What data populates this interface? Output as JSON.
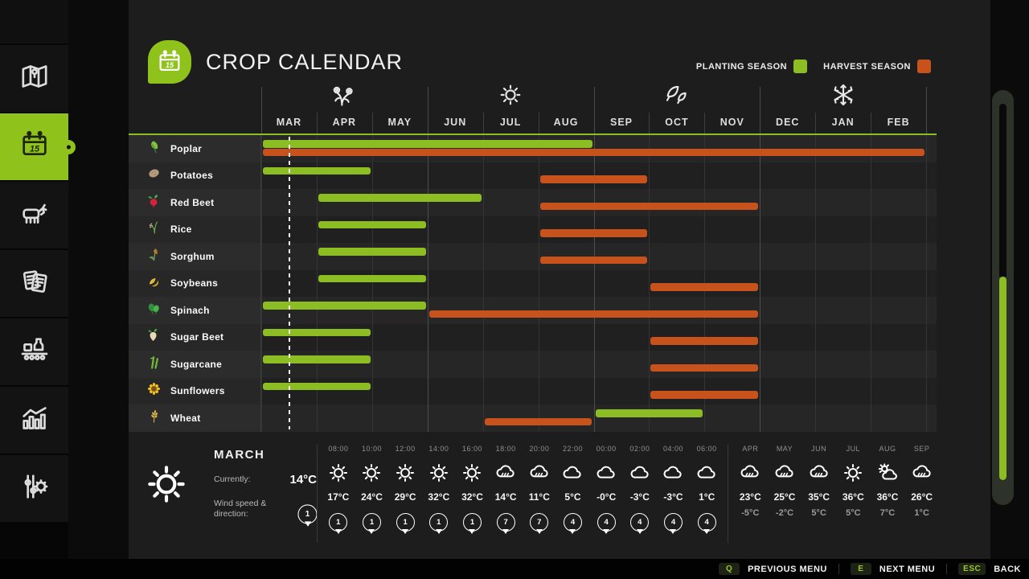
{
  "header": {
    "title": "CROP CALENDAR",
    "legend": [
      {
        "label": "PLANTING SEASON",
        "color": "#8cbd22"
      },
      {
        "label": "HARVEST SEASON",
        "color": "#c8521c"
      }
    ]
  },
  "sidebar": {
    "items": [
      {
        "icon": "map-icon",
        "active": false
      },
      {
        "icon": "calendar-icon",
        "active": true
      },
      {
        "icon": "animals-icon",
        "active": false
      },
      {
        "icon": "contracts-icon",
        "active": false
      },
      {
        "icon": "production-icon",
        "active": false
      },
      {
        "icon": "statistics-icon",
        "active": false
      },
      {
        "icon": "settings-icon",
        "active": false
      }
    ]
  },
  "chart_data": {
    "type": "gantt-calendar",
    "months": [
      "MAR",
      "APR",
      "MAY",
      "JUN",
      "JUL",
      "AUG",
      "SEP",
      "OCT",
      "NOV",
      "DEC",
      "JAN",
      "FEB"
    ],
    "seasons": [
      {
        "icon": "flower-icon",
        "month_index": 1
      },
      {
        "icon": "sun-icon",
        "month_index": 4
      },
      {
        "icon": "leaves-icon",
        "month_index": 7
      },
      {
        "icon": "snowflake-icon",
        "month_index": 10
      }
    ],
    "series_colors": {
      "planting": "#8cbd22",
      "harvest": "#c8521c"
    },
    "current_date_marker": {
      "month": "MAR",
      "month_index": 0,
      "fraction": 0.5
    },
    "crops": [
      {
        "name": "Poplar",
        "icon": "poplar-icon",
        "planting": {
          "start": 0,
          "end": 5,
          "months": "MAR-AUG"
        },
        "harvest": {
          "start": 0,
          "end": 11,
          "months": "MAR-FEB"
        }
      },
      {
        "name": "Potatoes",
        "icon": "potatoes-icon",
        "planting": {
          "start": 0,
          "end": 1,
          "months": "MAR-APR"
        },
        "harvest": {
          "start": 5,
          "end": 6,
          "months": "AUG-SEP"
        }
      },
      {
        "name": "Red Beet",
        "icon": "red-beet-icon",
        "planting": {
          "start": 1,
          "end": 3,
          "months": "APR-JUN"
        },
        "harvest": {
          "start": 5,
          "end": 8,
          "months": "AUG-NOV"
        }
      },
      {
        "name": "Rice",
        "icon": "rice-icon",
        "planting": {
          "start": 1,
          "end": 2,
          "months": "APR-MAY"
        },
        "harvest": {
          "start": 5,
          "end": 6,
          "months": "AUG-SEP"
        }
      },
      {
        "name": "Sorghum",
        "icon": "sorghum-icon",
        "planting": {
          "start": 1,
          "end": 2,
          "months": "APR-MAY"
        },
        "harvest": {
          "start": 5,
          "end": 6,
          "months": "AUG-SEP"
        }
      },
      {
        "name": "Soybeans",
        "icon": "soybeans-icon",
        "planting": {
          "start": 1,
          "end": 2,
          "months": "APR-MAY"
        },
        "harvest": {
          "start": 7,
          "end": 8,
          "months": "OCT-NOV"
        }
      },
      {
        "name": "Spinach",
        "icon": "spinach-icon",
        "planting": {
          "start": 0,
          "end": 2,
          "months": "MAR-MAY"
        },
        "harvest": {
          "start": 3,
          "end": 8,
          "months": "JUN-NOV"
        }
      },
      {
        "name": "Sugar Beet",
        "icon": "sugar-beet-icon",
        "planting": {
          "start": 0,
          "end": 1,
          "months": "MAR-APR"
        },
        "harvest": {
          "start": 7,
          "end": 8,
          "months": "OCT-NOV"
        }
      },
      {
        "name": "Sugarcane",
        "icon": "sugarcane-icon",
        "planting": {
          "start": 0,
          "end": 1,
          "months": "MAR-APR"
        },
        "harvest": {
          "start": 7,
          "end": 8,
          "months": "OCT-NOV"
        }
      },
      {
        "name": "Sunflowers",
        "icon": "sunflowers-icon",
        "planting": {
          "start": 0,
          "end": 1,
          "months": "MAR-APR"
        },
        "harvest": {
          "start": 7,
          "end": 8,
          "months": "OCT-NOV"
        }
      },
      {
        "name": "Wheat",
        "icon": "wheat-icon",
        "planting": {
          "start": 6,
          "end": 7,
          "months": "SEP-OCT"
        },
        "harvest": {
          "start": 4,
          "end": 5,
          "months": "JUL-AUG"
        }
      }
    ]
  },
  "weather": {
    "current": {
      "month": "MARCH",
      "condition": "sun",
      "currently_label": "Currently:",
      "temperature": "14°C",
      "wind_label": "Wind speed & direction:",
      "wind": "1"
    },
    "hourly": [
      {
        "time": "08:00",
        "condition": "sun",
        "temp": "17°C",
        "wind": "1"
      },
      {
        "time": "10:00",
        "condition": "sun",
        "temp": "24°C",
        "wind": "1"
      },
      {
        "time": "12:00",
        "condition": "sun",
        "temp": "29°C",
        "wind": "1"
      },
      {
        "time": "14:00",
        "condition": "sun",
        "temp": "32°C",
        "wind": "1"
      },
      {
        "time": "16:00",
        "condition": "sun",
        "temp": "32°C",
        "wind": "1"
      },
      {
        "time": "18:00",
        "condition": "rain",
        "temp": "14°C",
        "wind": "7"
      },
      {
        "time": "20:00",
        "condition": "rain",
        "temp": "11°C",
        "wind": "7"
      },
      {
        "time": "22:00",
        "condition": "cloud",
        "temp": "5°C",
        "wind": "4"
      },
      {
        "time": "00:00",
        "condition": "cloud",
        "temp": "-0°C",
        "wind": "4"
      },
      {
        "time": "02:00",
        "condition": "cloud",
        "temp": "-3°C",
        "wind": "4"
      },
      {
        "time": "04:00",
        "condition": "cloud",
        "temp": "-3°C",
        "wind": "4"
      },
      {
        "time": "06:00",
        "condition": "cloud",
        "temp": "1°C",
        "wind": "4"
      }
    ],
    "monthly": [
      {
        "month": "APR",
        "condition": "rain",
        "high": "23°C",
        "low": "-5°C"
      },
      {
        "month": "MAY",
        "condition": "rain",
        "high": "25°C",
        "low": "-2°C"
      },
      {
        "month": "JUN",
        "condition": "rain",
        "high": "35°C",
        "low": "5°C"
      },
      {
        "month": "JUL",
        "condition": "sun",
        "high": "36°C",
        "low": "5°C"
      },
      {
        "month": "AUG",
        "condition": "partly",
        "high": "36°C",
        "low": "7°C"
      },
      {
        "month": "SEP",
        "condition": "rain",
        "high": "26°C",
        "low": "1°C"
      }
    ]
  },
  "footer": {
    "actions": [
      {
        "key": "Q",
        "label": "PREVIOUS MENU"
      },
      {
        "key": "E",
        "label": "NEXT MENU"
      },
      {
        "key": "ESC",
        "label": "BACK"
      }
    ]
  }
}
